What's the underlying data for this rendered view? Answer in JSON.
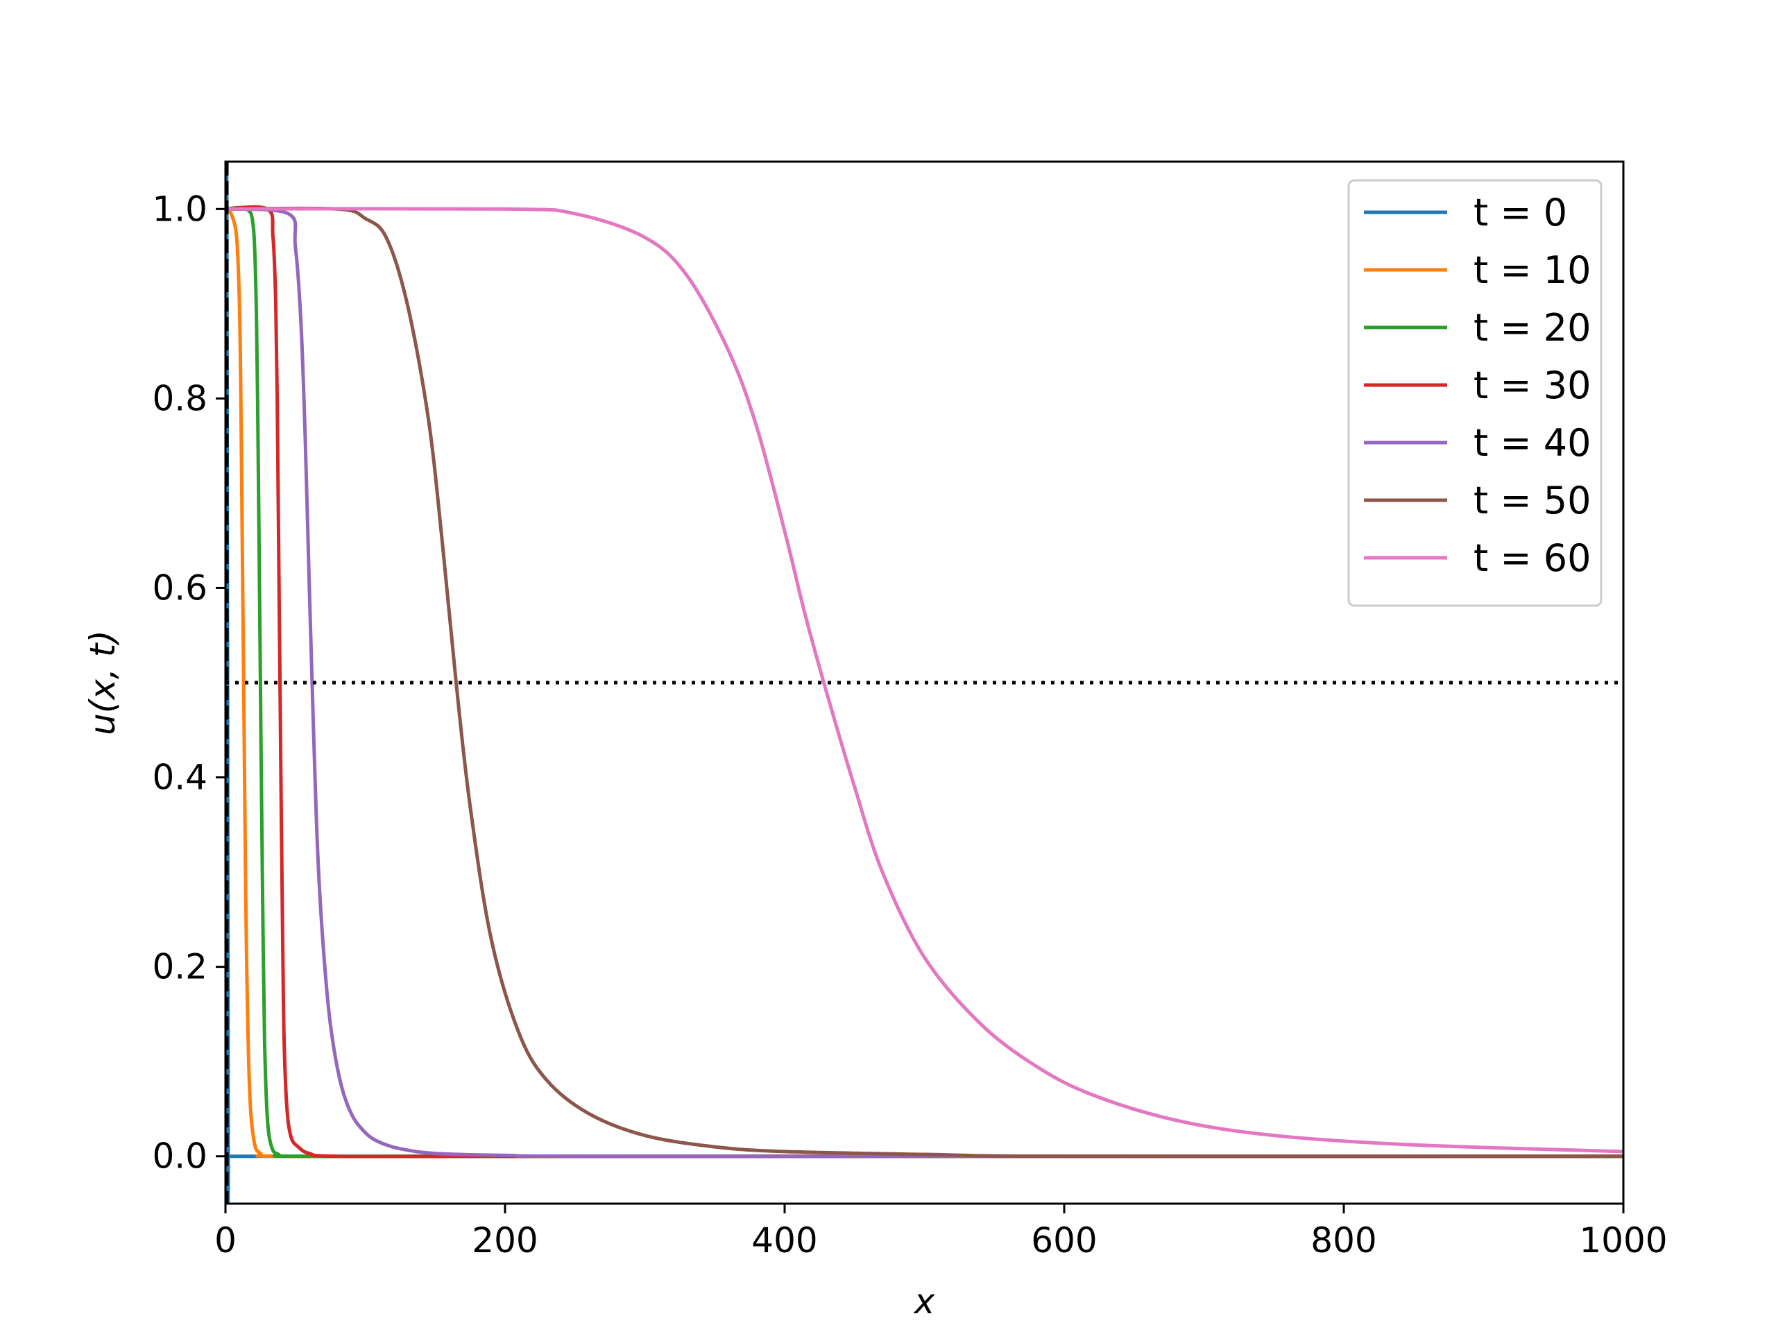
{
  "chart_data": {
    "type": "line",
    "title": "",
    "xlabel": "x",
    "ylabel": "u(x, t)",
    "xlim": [
      0,
      1000
    ],
    "ylim": [
      -0.05,
      1.05
    ],
    "xticks": [
      0,
      200,
      400,
      600,
      800,
      1000
    ],
    "xtick_labels": [
      "0",
      "200",
      "400",
      "600",
      "800",
      "1000"
    ],
    "yticks": [
      0.0,
      0.2,
      0.4,
      0.6,
      0.8,
      1.0
    ],
    "ytick_labels": [
      "0.0",
      "0.2",
      "0.4",
      "0.6",
      "0.8",
      "1.0"
    ],
    "grid": false,
    "legend_position": "top-right",
    "reference_lines": [
      {
        "orientation": "horizontal",
        "value": 0.5,
        "style": "dotted",
        "color": "#000000"
      },
      {
        "orientation": "vertical",
        "value": 1,
        "style": "dashed",
        "color": "#000000"
      }
    ],
    "series": [
      {
        "name": "t = 0",
        "color": "#1f77b4",
        "x": [
          0,
          1,
          2,
          3,
          50,
          200,
          400,
          600,
          800,
          1000
        ],
        "y": [
          1.0,
          1.0,
          0.0,
          0.0,
          0.0,
          0.0,
          0.0,
          0.0,
          0.0,
          0.0
        ]
      },
      {
        "name": "t = 10",
        "color": "#ff7f0e",
        "x": [
          0,
          4,
          8,
          10,
          11,
          12,
          13,
          14,
          15,
          17,
          20,
          25,
          40,
          200,
          1000
        ],
        "y": [
          1.0,
          0.995,
          0.97,
          0.9,
          0.8,
          0.65,
          0.5,
          0.35,
          0.22,
          0.08,
          0.02,
          0.003,
          0.0,
          0.0,
          0.0
        ]
      },
      {
        "name": "t = 20",
        "color": "#2ca02c",
        "x": [
          0,
          15,
          20,
          22,
          23,
          24,
          25,
          26,
          27,
          28,
          30,
          33,
          38,
          50,
          200,
          1000
        ],
        "y": [
          1.0,
          1.0,
          0.98,
          0.9,
          0.8,
          0.65,
          0.5,
          0.35,
          0.22,
          0.12,
          0.04,
          0.01,
          0.002,
          0.0,
          0.0,
          0.0
        ]
      },
      {
        "name": "t = 30",
        "color": "#d62728",
        "x": [
          0,
          30,
          34,
          36,
          37,
          38,
          39,
          40,
          41,
          42,
          44,
          47,
          52,
          60,
          80,
          200,
          1000
        ],
        "y": [
          1.0,
          1.0,
          0.97,
          0.9,
          0.8,
          0.65,
          0.5,
          0.35,
          0.22,
          0.12,
          0.05,
          0.02,
          0.01,
          0.003,
          0.0,
          0.0,
          0.0
        ]
      },
      {
        "name": "t = 40",
        "color": "#9467bd",
        "x": [
          0,
          45,
          50,
          54,
          57,
          60,
          63,
          66,
          70,
          75,
          82,
          90,
          100,
          110,
          125,
          150,
          200,
          300,
          1000
        ],
        "y": [
          1.0,
          0.995,
          0.96,
          0.88,
          0.76,
          0.6,
          0.45,
          0.32,
          0.22,
          0.14,
          0.08,
          0.045,
          0.025,
          0.015,
          0.008,
          0.003,
          0.001,
          0.0,
          0.0
        ]
      },
      {
        "name": "t = 50",
        "color": "#8c564b",
        "x": [
          0,
          80,
          100,
          115,
          130,
          145,
          155,
          165,
          175,
          190,
          210,
          230,
          260,
          300,
          350,
          400,
          500,
          600,
          1000
        ],
        "y": [
          1.0,
          1.0,
          0.99,
          0.97,
          0.9,
          0.78,
          0.65,
          0.5,
          0.37,
          0.23,
          0.13,
          0.08,
          0.045,
          0.022,
          0.01,
          0.005,
          0.002,
          0.0,
          0.0
        ]
      },
      {
        "name": "t = 60",
        "color": "#e377c2",
        "x": [
          0,
          200,
          250,
          300,
          330,
          360,
          380,
          400,
          415,
          430,
          450,
          470,
          500,
          540,
          580,
          620,
          680,
          750,
          850,
          1000
        ],
        "y": [
          1.0,
          1.0,
          0.995,
          0.97,
          0.93,
          0.85,
          0.77,
          0.66,
          0.57,
          0.49,
          0.39,
          0.3,
          0.21,
          0.14,
          0.095,
          0.065,
          0.038,
          0.022,
          0.012,
          0.005
        ]
      }
    ]
  }
}
